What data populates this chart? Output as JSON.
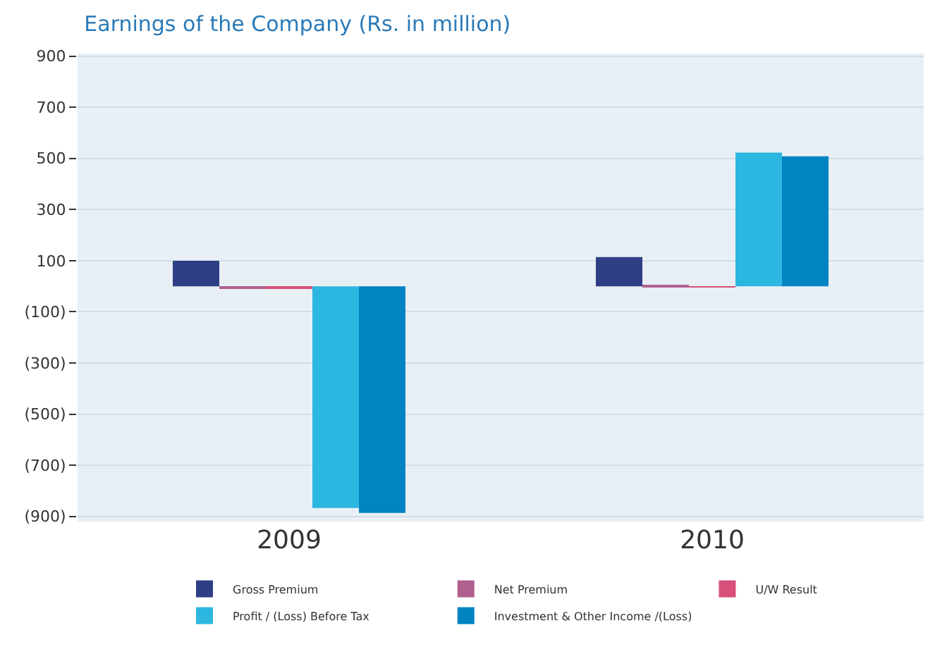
{
  "chart_data": {
    "type": "bar",
    "title": "Earnings of the Company (Rs. in million)",
    "categories": [
      "2009",
      "2010"
    ],
    "series": [
      {
        "name": "Gross Premium",
        "color": "#2e3f86",
        "values": [
          100,
          114
        ]
      },
      {
        "name": "Net Premium",
        "color": "#b0608e",
        "values": [
          -8,
          5
        ]
      },
      {
        "name": "U/W Result",
        "color": "#d8507a",
        "values": [
          -8,
          -3
        ]
      },
      {
        "name": "Profit / (Loss) Before Tax",
        "color": "#2cb7e0",
        "values": [
          -867,
          523
        ]
      },
      {
        "name": "Investment & Other Income /(Loss)",
        "color": "#0284c2",
        "values": [
          -886,
          508
        ]
      }
    ],
    "ylim": [
      -920,
      910
    ],
    "yticks": [
      {
        "value": -900,
        "label": "(900)"
      },
      {
        "value": -700,
        "label": "(700)"
      },
      {
        "value": -500,
        "label": "(500)"
      },
      {
        "value": -300,
        "label": "(300)"
      },
      {
        "value": -100,
        "label": "(100)"
      },
      100,
      300,
      500,
      700,
      900
    ],
    "grid": "y",
    "legend": "bottom"
  }
}
